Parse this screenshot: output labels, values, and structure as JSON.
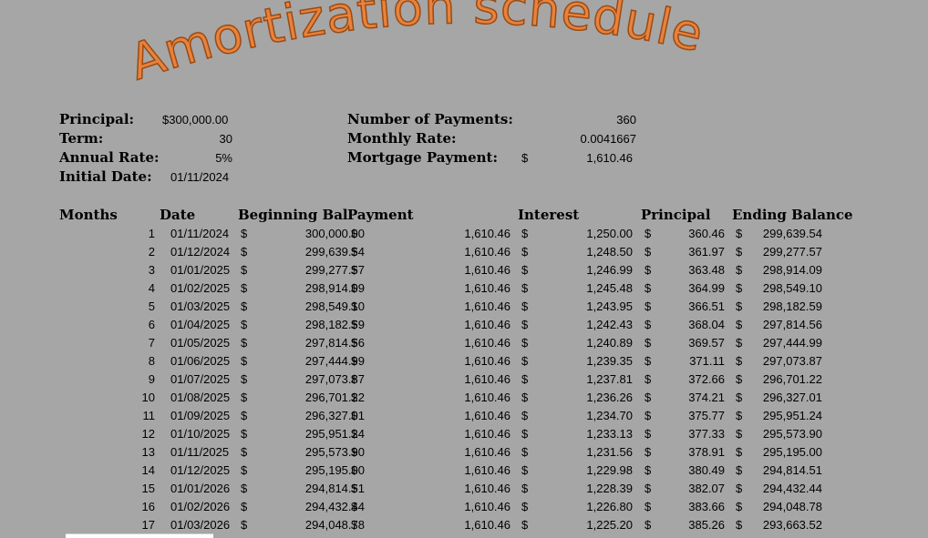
{
  "title": "Amortization schedule",
  "summary": {
    "principal_label": "Principal:",
    "principal_value": "$300,000.00",
    "term_label": "Term:",
    "term_value": "30",
    "annual_rate_label": "Annual Rate:",
    "annual_rate_value": "5%",
    "initial_date_label": "Initial Date:",
    "initial_date_value": "01/11/2024",
    "num_payments_label": "Number of Payments:",
    "num_payments_value": "360",
    "monthly_rate_label": "Monthly Rate:",
    "monthly_rate_value": "0.0041667",
    "mortgage_payment_label": "Mortgage Payment:",
    "mortgage_payment_currency": "$",
    "mortgage_payment_value": "1,610.46"
  },
  "table": {
    "headers": {
      "months": "Months",
      "date": "Date",
      "beginning_bal": "Beginning Bal",
      "payment": "Payment",
      "interest": "Interest",
      "principal": "Principal",
      "ending_balance": "Ending Balance"
    },
    "currency": "$",
    "rows": [
      {
        "m": "1",
        "date": "01/11/2024",
        "beg": "300,000.00",
        "pay": "1,610.46",
        "int": "1,250.00",
        "prin": "360.46",
        "end": "299,639.54"
      },
      {
        "m": "2",
        "date": "01/12/2024",
        "beg": "299,639.54",
        "pay": "1,610.46",
        "int": "1,248.50",
        "prin": "361.97",
        "end": "299,277.57"
      },
      {
        "m": "3",
        "date": "01/01/2025",
        "beg": "299,277.57",
        "pay": "1,610.46",
        "int": "1,246.99",
        "prin": "363.48",
        "end": "298,914.09"
      },
      {
        "m": "4",
        "date": "01/02/2025",
        "beg": "298,914.09",
        "pay": "1,610.46",
        "int": "1,245.48",
        "prin": "364.99",
        "end": "298,549.10"
      },
      {
        "m": "5",
        "date": "01/03/2025",
        "beg": "298,549.10",
        "pay": "1,610.46",
        "int": "1,243.95",
        "prin": "366.51",
        "end": "298,182.59"
      },
      {
        "m": "6",
        "date": "01/04/2025",
        "beg": "298,182.59",
        "pay": "1,610.46",
        "int": "1,242.43",
        "prin": "368.04",
        "end": "297,814.56"
      },
      {
        "m": "7",
        "date": "01/05/2025",
        "beg": "297,814.56",
        "pay": "1,610.46",
        "int": "1,240.89",
        "prin": "369.57",
        "end": "297,444.99"
      },
      {
        "m": "8",
        "date": "01/06/2025",
        "beg": "297,444.99",
        "pay": "1,610.46",
        "int": "1,239.35",
        "prin": "371.11",
        "end": "297,073.87"
      },
      {
        "m": "9",
        "date": "01/07/2025",
        "beg": "297,073.87",
        "pay": "1,610.46",
        "int": "1,237.81",
        "prin": "372.66",
        "end": "296,701.22"
      },
      {
        "m": "10",
        "date": "01/08/2025",
        "beg": "296,701.22",
        "pay": "1,610.46",
        "int": "1,236.26",
        "prin": "374.21",
        "end": "296,327.01"
      },
      {
        "m": "11",
        "date": "01/09/2025",
        "beg": "296,327.01",
        "pay": "1,610.46",
        "int": "1,234.70",
        "prin": "375.77",
        "end": "295,951.24"
      },
      {
        "m": "12",
        "date": "01/10/2025",
        "beg": "295,951.24",
        "pay": "1,610.46",
        "int": "1,233.13",
        "prin": "377.33",
        "end": "295,573.90"
      },
      {
        "m": "13",
        "date": "01/11/2025",
        "beg": "295,573.90",
        "pay": "1,610.46",
        "int": "1,231.56",
        "prin": "378.91",
        "end": "295,195.00"
      },
      {
        "m": "14",
        "date": "01/12/2025",
        "beg": "295,195.00",
        "pay": "1,610.46",
        "int": "1,229.98",
        "prin": "380.49",
        "end": "294,814.51"
      },
      {
        "m": "15",
        "date": "01/01/2026",
        "beg": "294,814.51",
        "pay": "1,610.46",
        "int": "1,228.39",
        "prin": "382.07",
        "end": "294,432.44"
      },
      {
        "m": "16",
        "date": "01/02/2026",
        "beg": "294,432.44",
        "pay": "1,610.46",
        "int": "1,226.80",
        "prin": "383.66",
        "end": "294,048.78"
      },
      {
        "m": "17",
        "date": "01/03/2026",
        "beg": "294,048.78",
        "pay": "1,610.46",
        "int": "1,225.20",
        "prin": "385.26",
        "end": "293,663.52"
      }
    ]
  },
  "colors": {
    "background": "#a6a6a6",
    "title_fill": "#e8823c",
    "title_stroke": "#9a4a12"
  }
}
